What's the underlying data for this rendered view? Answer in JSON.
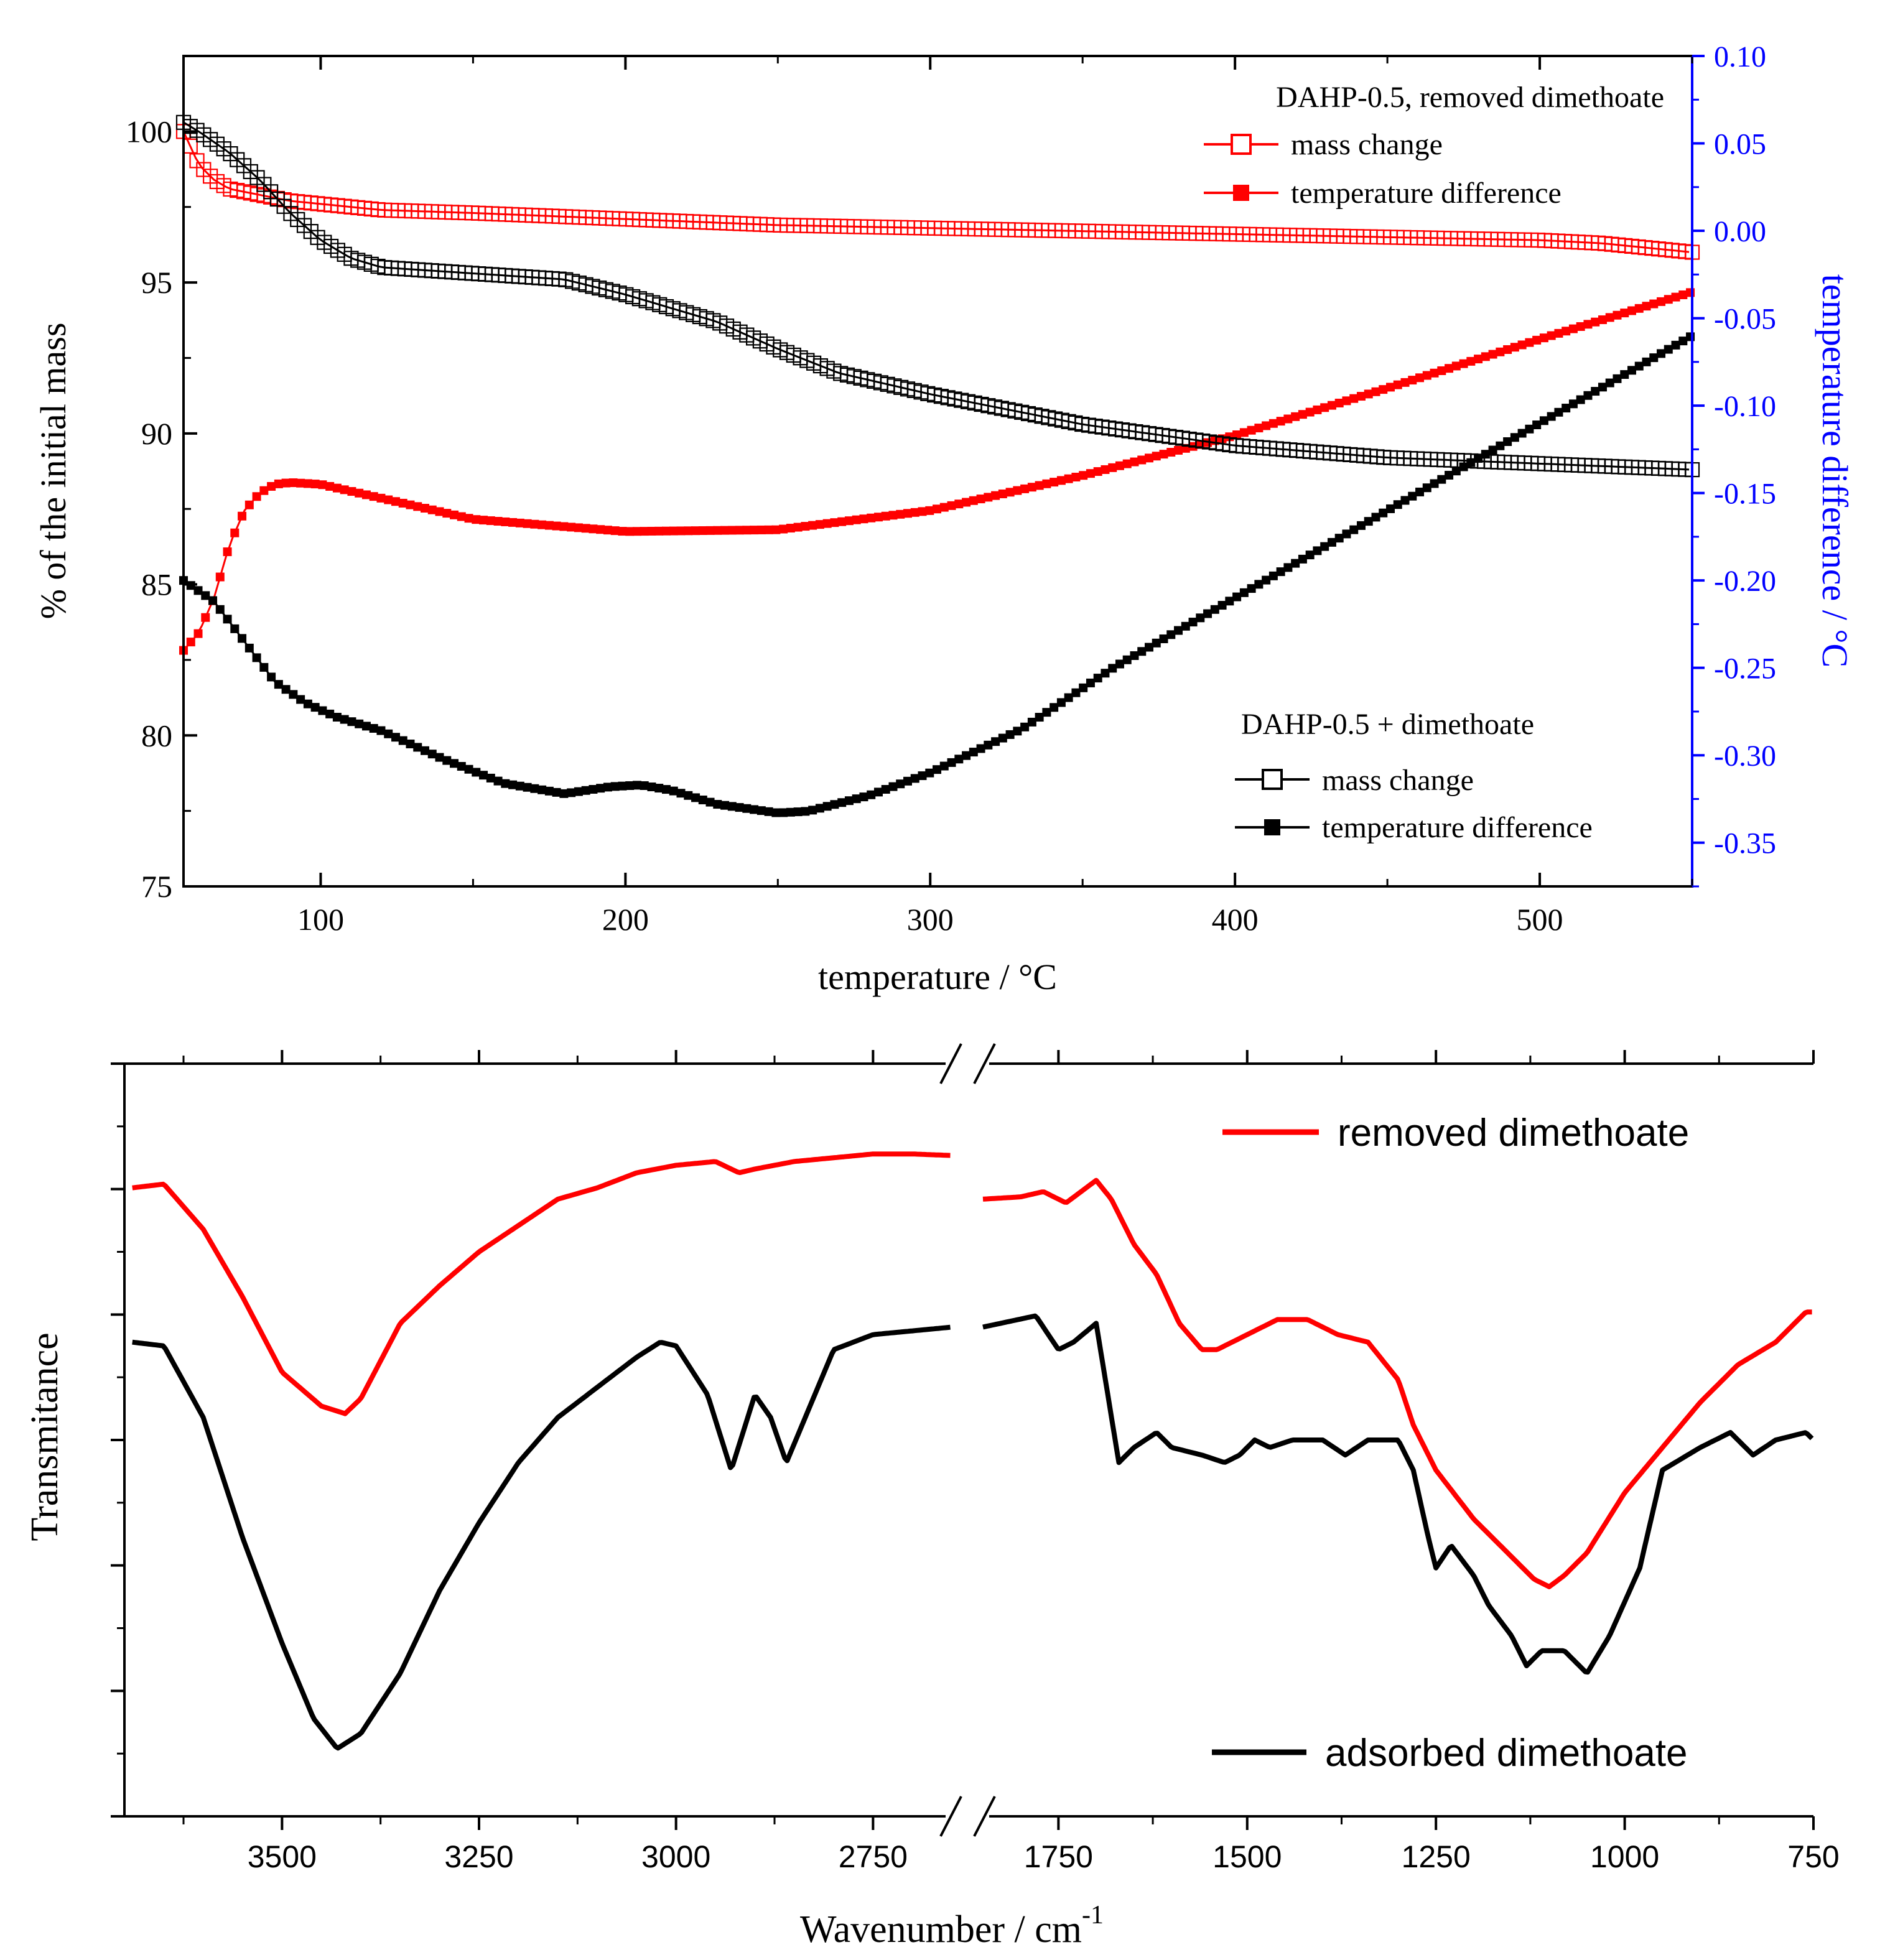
{
  "chart_data": [
    {
      "type": "line",
      "title": "",
      "xlabel": "temperature / °C",
      "ylabel": "% of the initial mass",
      "y2label": "temperature difference / °C",
      "xlim": [
        55,
        550
      ],
      "ylim": [
        75,
        102.5
      ],
      "y2lim": [
        -0.375,
        0.1
      ],
      "x_ticks": [
        100,
        200,
        300,
        400,
        500
      ],
      "y_ticks": [
        75,
        80,
        85,
        90,
        95,
        100
      ],
      "y2_ticks": [
        0.1,
        0.05,
        0.0,
        -0.05,
        -0.1,
        -0.15,
        -0.2,
        -0.25,
        -0.3,
        -0.35
      ],
      "y2_tick_labels": [
        "0.10",
        "0.05",
        "0.00",
        "-0.05",
        "-0.10",
        "-0.15",
        "-0.20",
        "-0.25",
        "-0.30",
        "-0.35"
      ],
      "axis_colors": {
        "left": "#000000",
        "right": "#0000ff"
      },
      "legends": [
        {
          "title": "DAHP-0.5, removed dimethoate",
          "placement": "top-right",
          "entries": [
            {
              "label": "mass change",
              "marker": "open-square",
              "color": "#ff0000"
            },
            {
              "label": "temperature difference",
              "marker": "filled-square",
              "color": "#ff0000"
            }
          ]
        },
        {
          "title": "DAHP-0.5 + dimethoate",
          "placement": "bottom-right",
          "entries": [
            {
              "label": "mass change",
              "marker": "open-square",
              "color": "#000000"
            },
            {
              "label": "temperature difference",
              "marker": "filled-square",
              "color": "#000000"
            }
          ]
        }
      ],
      "series": [
        {
          "name": "DAHP-0.5, removed dimethoate mass change",
          "axis": "left",
          "marker": "open-square",
          "color": "#ff0000",
          "x": [
            55,
            60,
            65,
            70,
            75,
            80,
            90,
            100,
            120,
            150,
            200,
            250,
            300,
            350,
            400,
            450,
            500,
            520,
            540,
            550
          ],
          "y": [
            100.0,
            98.9,
            98.4,
            98.1,
            98.0,
            97.9,
            97.7,
            97.6,
            97.4,
            97.3,
            97.1,
            96.9,
            96.8,
            96.7,
            96.6,
            96.5,
            96.4,
            96.3,
            96.1,
            96.0
          ]
        },
        {
          "name": "DAHP-0.5, removed dimethoate temperature difference",
          "axis": "right",
          "marker": "filled-square",
          "color": "#ff0000",
          "x": [
            55,
            60,
            65,
            70,
            75,
            80,
            85,
            90,
            100,
            120,
            150,
            200,
            250,
            300,
            350,
            400,
            450,
            500,
            550
          ],
          "y": [
            -0.24,
            -0.23,
            -0.21,
            -0.18,
            -0.16,
            -0.15,
            -0.145,
            -0.144,
            -0.145,
            -0.153,
            -0.165,
            -0.172,
            -0.171,
            -0.16,
            -0.14,
            -0.117,
            -0.09,
            -0.062,
            -0.035
          ]
        },
        {
          "name": "DAHP-0.5 + dimethoate mass change",
          "axis": "left",
          "marker": "open-square",
          "color": "#000000",
          "x": [
            55,
            60,
            70,
            80,
            90,
            100,
            110,
            120,
            150,
            180,
            200,
            230,
            250,
            270,
            300,
            350,
            400,
            450,
            500,
            550
          ],
          "y": [
            100.3,
            100.0,
            99.3,
            98.4,
            97.3,
            96.4,
            95.8,
            95.5,
            95.3,
            95.1,
            94.6,
            93.7,
            92.8,
            92.0,
            91.3,
            90.3,
            89.6,
            89.2,
            89.0,
            88.8
          ]
        },
        {
          "name": "DAHP-0.5 + dimethoate temperature difference",
          "axis": "right",
          "marker": "filled-square",
          "color": "#000000",
          "x": [
            55,
            65,
            75,
            85,
            95,
            105,
            120,
            140,
            160,
            180,
            195,
            205,
            215,
            230,
            250,
            260,
            280,
            300,
            330,
            360,
            400,
            450,
            500,
            550
          ],
          "y": [
            -0.2,
            -0.212,
            -0.235,
            -0.258,
            -0.27,
            -0.278,
            -0.286,
            -0.302,
            -0.316,
            -0.322,
            -0.318,
            -0.317,
            -0.32,
            -0.328,
            -0.333,
            -0.332,
            -0.323,
            -0.31,
            -0.285,
            -0.25,
            -0.21,
            -0.16,
            -0.11,
            -0.06
          ]
        }
      ]
    },
    {
      "type": "line",
      "title": "",
      "xlabel": "Wavenumber / cm",
      "xlabel_sup": "-1",
      "ylabel": "Transmitance",
      "x_reversed": true,
      "x_break": {
        "from": 2650,
        "to": 1850
      },
      "xlim": [
        3700,
        750
      ],
      "ylim": [
        0,
        1
      ],
      "x_ticks": [
        3500,
        3250,
        3000,
        2750,
        1750,
        1500,
        1250,
        1000,
        750
      ],
      "y_ticks_labeled": false,
      "legend_placement": "top-right and bottom-right",
      "series": [
        {
          "name": "removed dimethoate",
          "color": "#ff0000",
          "x": [
            3690,
            3650,
            3600,
            3550,
            3500,
            3450,
            3420,
            3400,
            3350,
            3300,
            3250,
            3200,
            3150,
            3100,
            3050,
            3000,
            2950,
            2920,
            2900,
            2850,
            2800,
            2750,
            2700,
            2650,
            1850,
            1800,
            1770,
            1740,
            1700,
            1680,
            1650,
            1620,
            1590,
            1560,
            1540,
            1500,
            1460,
            1420,
            1380,
            1340,
            1300,
            1280,
            1250,
            1200,
            1150,
            1120,
            1100,
            1080,
            1050,
            1000,
            950,
            900,
            850,
            800,
            760,
            750
          ],
          "y": [
            0.835,
            0.84,
            0.78,
            0.69,
            0.59,
            0.545,
            0.535,
            0.555,
            0.655,
            0.705,
            0.75,
            0.785,
            0.82,
            0.835,
            0.855,
            0.865,
            0.87,
            0.855,
            0.86,
            0.87,
            0.875,
            0.88,
            0.88,
            0.878,
            0.82,
            0.823,
            0.83,
            0.815,
            0.845,
            0.82,
            0.76,
            0.72,
            0.655,
            0.62,
            0.62,
            0.64,
            0.66,
            0.66,
            0.64,
            0.63,
            0.58,
            0.52,
            0.46,
            0.395,
            0.345,
            0.315,
            0.305,
            0.32,
            0.35,
            0.43,
            0.49,
            0.55,
            0.6,
            0.63,
            0.67,
            0.67
          ]
        },
        {
          "name": "adsorbed dimethoate",
          "color": "#000000",
          "x": [
            3690,
            3650,
            3600,
            3550,
            3500,
            3460,
            3430,
            3400,
            3350,
            3300,
            3250,
            3200,
            3150,
            3100,
            3050,
            3020,
            3000,
            2960,
            2930,
            2900,
            2880,
            2860,
            2840,
            2800,
            2750,
            2700,
            2650,
            1850,
            1780,
            1750,
            1730,
            1700,
            1670,
            1650,
            1620,
            1600,
            1560,
            1530,
            1510,
            1490,
            1470,
            1440,
            1400,
            1370,
            1340,
            1300,
            1280,
            1260,
            1250,
            1230,
            1200,
            1180,
            1150,
            1130,
            1110,
            1080,
            1050,
            1020,
            980,
            950,
            900,
            860,
            830,
            800,
            760,
            750
          ],
          "y": [
            0.63,
            0.625,
            0.53,
            0.37,
            0.23,
            0.13,
            0.09,
            0.11,
            0.19,
            0.3,
            0.39,
            0.47,
            0.53,
            0.57,
            0.61,
            0.63,
            0.625,
            0.56,
            0.46,
            0.56,
            0.53,
            0.47,
            0.52,
            0.62,
            0.64,
            0.645,
            0.65,
            0.65,
            0.665,
            0.62,
            0.63,
            0.655,
            0.47,
            0.49,
            0.51,
            0.49,
            0.48,
            0.47,
            0.48,
            0.5,
            0.49,
            0.5,
            0.5,
            0.48,
            0.5,
            0.5,
            0.46,
            0.37,
            0.33,
            0.36,
            0.32,
            0.28,
            0.24,
            0.2,
            0.22,
            0.22,
            0.19,
            0.24,
            0.33,
            0.46,
            0.49,
            0.51,
            0.48,
            0.5,
            0.51,
            0.5
          ]
        }
      ]
    }
  ]
}
